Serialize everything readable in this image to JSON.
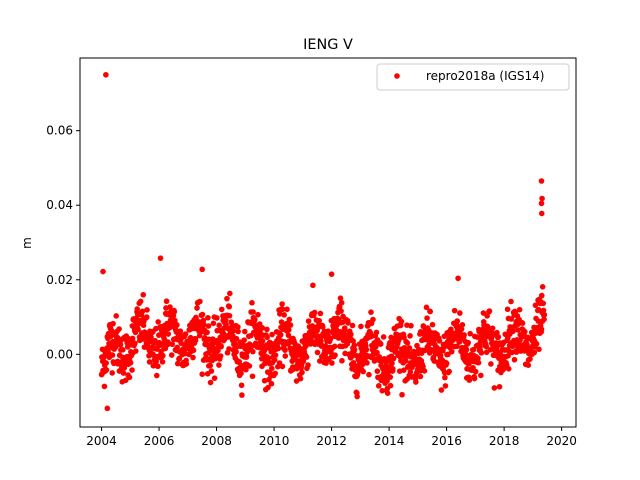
{
  "chart_data": {
    "type": "scatter",
    "title": "IENG V",
    "xlabel": "",
    "ylabel": "m",
    "xlim": [
      2003.25,
      2020.5
    ],
    "ylim": [
      -0.0195,
      0.0795
    ],
    "xticks": [
      2004,
      2006,
      2008,
      2010,
      2012,
      2014,
      2016,
      2018,
      2020
    ],
    "xtick_labels": [
      "2004",
      "2006",
      "2008",
      "2010",
      "2012",
      "2014",
      "2016",
      "2018",
      "2020"
    ],
    "yticks": [
      0.0,
      0.02,
      0.04,
      0.06
    ],
    "ytick_labels": [
      "0.00",
      "0.02",
      "0.04",
      "0.06"
    ],
    "grid": false,
    "legend_position": "top-right",
    "marker_color": "#ff0000",
    "series": [
      {
        "name": "repro2018a (IGS14)",
        "x_start": 2004.0,
        "x_end": 2019.4,
        "sample_step_years": 0.01,
        "notable_points": [
          {
            "x": 2004.15,
            "y": 0.075
          },
          {
            "x": 2004.05,
            "y": 0.0222
          },
          {
            "x": 2006.05,
            "y": 0.0258
          },
          {
            "x": 2004.2,
            "y": -0.0145
          },
          {
            "x": 2019.3,
            "y": 0.0465
          },
          {
            "x": 2019.32,
            "y": 0.0418
          },
          {
            "x": 2019.3,
            "y": 0.0405
          },
          {
            "x": 2019.31,
            "y": 0.0378
          },
          {
            "x": 2007.5,
            "y": 0.0228
          },
          {
            "x": 2012.0,
            "y": 0.0215
          },
          {
            "x": 2016.4,
            "y": 0.0204
          }
        ],
        "trend": [
          {
            "x": 2004.0,
            "y": -0.002
          },
          {
            "x": 2004.5,
            "y": 0.001
          },
          {
            "x": 2005.0,
            "y": 0.004
          },
          {
            "x": 2006.0,
            "y": 0.004
          },
          {
            "x": 2007.0,
            "y": 0.005
          },
          {
            "x": 2008.0,
            "y": 0.004
          },
          {
            "x": 2009.0,
            "y": 0.003
          },
          {
            "x": 2010.0,
            "y": 0.002
          },
          {
            "x": 2011.0,
            "y": 0.002
          },
          {
            "x": 2012.0,
            "y": 0.005
          },
          {
            "x": 2013.0,
            "y": 0.001
          },
          {
            "x": 2014.0,
            "y": 0.0
          },
          {
            "x": 2015.0,
            "y": 0.0
          },
          {
            "x": 2016.0,
            "y": 0.002
          },
          {
            "x": 2017.0,
            "y": 0.002
          },
          {
            "x": 2018.0,
            "y": 0.003
          },
          {
            "x": 2019.0,
            "y": 0.005
          },
          {
            "x": 2019.4,
            "y": 0.006
          }
        ],
        "seasonal_amplitude": 0.004,
        "noise_sd": 0.0035
      }
    ]
  }
}
